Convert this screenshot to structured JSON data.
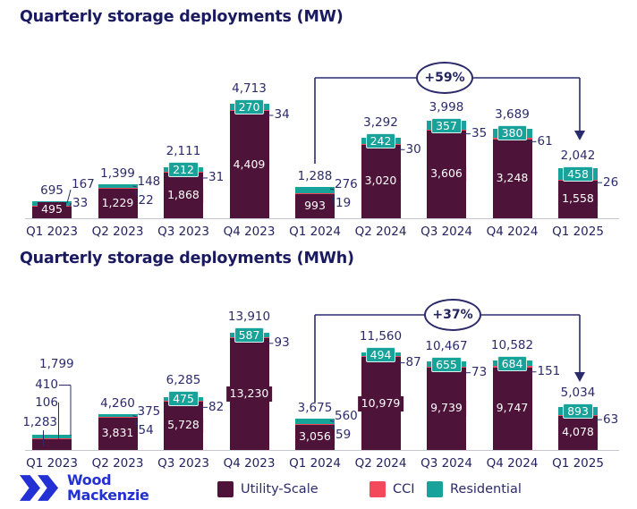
{
  "chart_data": [
    {
      "type": "bar",
      "stacked": true,
      "title": "Quarterly storage deployments (MW)",
      "categories": [
        "Q1 2023",
        "Q2 2023",
        "Q3 2023",
        "Q4 2023",
        "Q1 2024",
        "Q2 2024",
        "Q3 2024",
        "Q4 2024",
        "Q1 2025"
      ],
      "series": [
        {
          "name": "Utility-Scale",
          "values": [
            495,
            1229,
            1868,
            4409,
            993,
            3020,
            3606,
            3248,
            1558
          ]
        },
        {
          "name": "CCI",
          "values": [
            33,
            22,
            31,
            34,
            19,
            30,
            35,
            61,
            26
          ]
        },
        {
          "name": "Residential",
          "values": [
            167,
            148,
            212,
            270,
            276,
            242,
            357,
            380,
            458
          ]
        }
      ],
      "totals": [
        695,
        1399,
        2111,
        4713,
        1288,
        3292,
        3998,
        3689,
        2042
      ],
      "annotation": {
        "label": "+59%",
        "from": "Q1 2024",
        "to": "Q1 2025"
      },
      "xlabel": "",
      "ylabel": "",
      "grid": false,
      "axis_labels_visible": false,
      "label_layout": [
        "slash",
        "slash",
        "chip",
        "chip",
        "slash",
        "chip",
        "chip",
        "chip",
        "chip"
      ]
    },
    {
      "type": "bar",
      "stacked": true,
      "title": "Quarterly storage deployments (MWh)",
      "categories": [
        "Q1 2023",
        "Q2 2023",
        "Q3 2023",
        "Q4 2023",
        "Q1 2024",
        "Q2 2024",
        "Q3 2024",
        "Q4 2024",
        "Q1 2025"
      ],
      "series": [
        {
          "name": "Utility-Scale",
          "values": [
            1283,
            3831,
            5728,
            13230,
            3056,
            10979,
            9739,
            9747,
            4078
          ]
        },
        {
          "name": "CCI",
          "values": [
            106,
            54,
            82,
            93,
            59,
            87,
            73,
            151,
            63
          ]
        },
        {
          "name": "Residential",
          "values": [
            410,
            375,
            475,
            587,
            560,
            494,
            655,
            684,
            893
          ]
        }
      ],
      "totals": [
        1799,
        4260,
        6285,
        13910,
        3675,
        11560,
        10467,
        10582,
        5034
      ],
      "annotation": {
        "label": "+37%",
        "from": "Q1 2024",
        "to": "Q1 2025"
      },
      "xlabel": "",
      "ylabel": "",
      "grid": false,
      "axis_labels_visible": false,
      "label_layout": [
        "stack",
        "slash",
        "chip",
        "chip",
        "slash",
        "chip",
        "chip",
        "chip",
        "chip"
      ]
    }
  ],
  "legend": {
    "position": "bottom",
    "items": [
      {
        "label": "Utility-Scale",
        "color": "#4E1338"
      },
      {
        "label": "CCI",
        "color": "#F4485B"
      },
      {
        "label": "Residential",
        "color": "#17A29A"
      }
    ]
  },
  "logo": {
    "line1": "Wood",
    "line2": "Mackenzie"
  },
  "colors": {
    "utility": "#4E1338",
    "cci": "#F4485B",
    "residential": "#17A29A",
    "value_text": "#2B2B6B",
    "title_text": "#1A1A60",
    "axis_label_text": "#23235F",
    "annotation_line": "#2B2B6B",
    "axis_line": "#C6C6CC",
    "logo_blue": "#2330D4",
    "background": "#FFFFFF"
  }
}
